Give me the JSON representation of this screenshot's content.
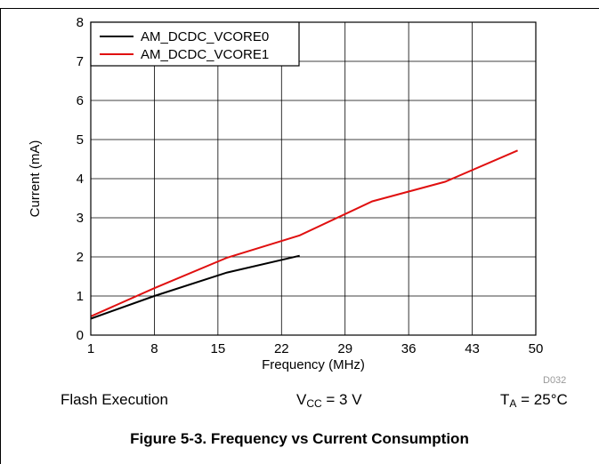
{
  "chart_data": {
    "type": "line",
    "xlabel": "Frequency (MHz)",
    "ylabel": "Current (mA)",
    "x_ticks": [
      1,
      8,
      15,
      22,
      29,
      36,
      43,
      50
    ],
    "y_ticks": [
      0,
      1,
      2,
      3,
      4,
      5,
      6,
      7,
      8
    ],
    "xlim": [
      1,
      50
    ],
    "ylim": [
      0,
      8
    ],
    "grid": true,
    "legend_position": "top-left",
    "series": [
      {
        "name": "AM_DCDC_VCORE0",
        "color": "#000000",
        "x": [
          1,
          8,
          16,
          24
        ],
        "y": [
          0.42,
          1.0,
          1.6,
          2.03
        ]
      },
      {
        "name": "AM_DCDC_VCORE1",
        "color": "#e01010",
        "x": [
          1,
          8,
          16,
          24,
          32,
          40,
          48
        ],
        "y": [
          0.48,
          1.2,
          1.98,
          2.55,
          3.42,
          3.92,
          4.72
        ]
      }
    ]
  },
  "figure_id": "D032",
  "conditions": {
    "left": "Flash Execution",
    "vcc_main": "V",
    "vcc_sub": "CC",
    "vcc_value": " = 3 V",
    "ta_main": "T",
    "ta_sub": "A",
    "ta_value": " = 25°C"
  },
  "caption": "Figure 5-3. Frequency vs Current Consumption"
}
